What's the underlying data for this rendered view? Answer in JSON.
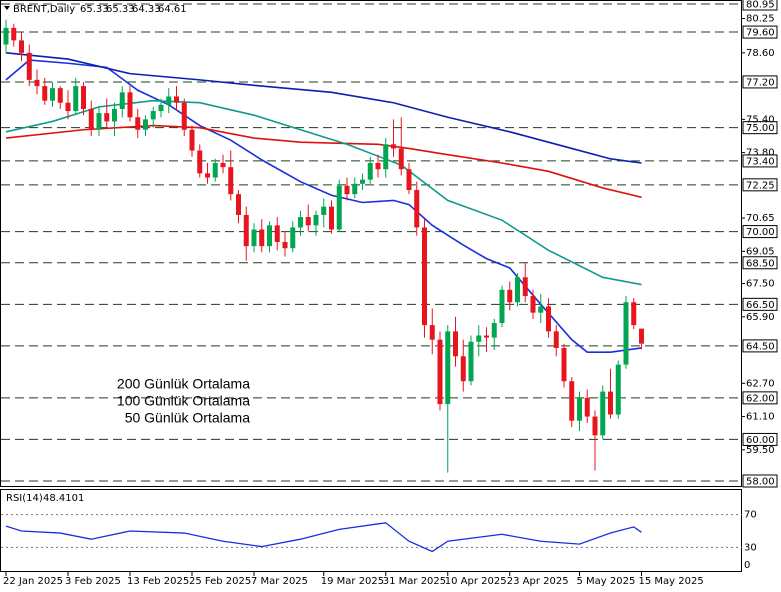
{
  "chart_data": [
    {
      "type": "candlestick",
      "title": "BRENT,Daily",
      "categories": [
        "22 Jan 2025",
        null,
        null,
        null,
        null,
        null,
        null,
        null,
        "3 Feb 2025",
        null,
        null,
        null,
        null,
        null,
        null,
        null,
        "13 Feb 2025",
        null,
        null,
        null,
        null,
        null,
        null,
        null,
        "25 Feb 2025",
        null,
        null,
        null,
        null,
        null,
        null,
        null,
        "7 Mar 2025",
        null,
        null,
        null,
        null,
        null,
        null,
        null,
        null,
        "19 Mar 2025",
        null,
        null,
        null,
        null,
        null,
        null,
        null,
        "31 Mar 2025",
        null,
        null,
        null,
        null,
        null,
        null,
        null,
        "10 Apr 2025",
        null,
        null,
        null,
        null,
        null,
        null,
        null,
        "23 Apr 2025",
        null,
        null,
        null,
        null,
        null,
        null,
        null,
        null,
        "5 May 2025",
        null,
        null,
        null,
        null,
        null,
        null,
        null,
        "15 May 2025"
      ],
      "ohlc": [
        [
          79.0,
          80.2,
          78.6,
          79.8
        ],
        [
          79.8,
          80.0,
          78.9,
          79.2
        ],
        [
          79.2,
          79.6,
          78.2,
          78.6
        ],
        [
          78.6,
          79.0,
          77.0,
          77.3
        ],
        [
          77.3,
          77.8,
          76.6,
          77.0
        ],
        [
          77.0,
          77.4,
          76.1,
          76.3
        ],
        [
          76.3,
          77.2,
          76.0,
          76.9
        ],
        [
          76.9,
          77.0,
          75.9,
          76.2
        ],
        [
          76.2,
          76.8,
          75.4,
          75.8
        ],
        [
          75.8,
          77.4,
          75.6,
          77.0
        ],
        [
          77.0,
          77.2,
          75.6,
          75.9
        ],
        [
          75.9,
          76.3,
          74.6,
          74.9
        ],
        [
          74.9,
          76.0,
          74.6,
          75.7
        ],
        [
          75.7,
          76.4,
          75.0,
          75.3
        ],
        [
          75.3,
          76.2,
          74.6,
          75.9
        ],
        [
          75.9,
          77.0,
          75.5,
          76.7
        ],
        [
          76.7,
          77.0,
          75.3,
          75.5
        ],
        [
          75.5,
          75.9,
          74.5,
          74.9
        ],
        [
          74.9,
          75.6,
          74.6,
          75.4
        ],
        [
          75.4,
          76.0,
          75.0,
          75.8
        ],
        [
          75.8,
          76.4,
          75.5,
          76.1
        ],
        [
          76.1,
          76.9,
          75.7,
          76.5
        ],
        [
          76.5,
          77.0,
          75.8,
          76.2
        ],
        [
          76.2,
          76.4,
          74.6,
          74.9
        ],
        [
          74.9,
          75.1,
          73.6,
          73.9
        ],
        [
          73.9,
          74.2,
          72.6,
          72.8
        ],
        [
          72.8,
          73.3,
          72.3,
          72.6
        ],
        [
          72.6,
          73.5,
          72.4,
          73.3
        ],
        [
          73.3,
          73.7,
          72.8,
          73.1
        ],
        [
          73.1,
          73.9,
          71.5,
          71.8
        ],
        [
          71.8,
          72.0,
          70.4,
          70.8
        ],
        [
          70.8,
          71.2,
          68.6,
          69.3
        ],
        [
          69.3,
          70.4,
          69.0,
          70.1
        ],
        [
          70.1,
          70.6,
          69.0,
          69.3
        ],
        [
          69.3,
          70.5,
          69.0,
          70.3
        ],
        [
          70.3,
          70.7,
          69.1,
          69.5
        ],
        [
          69.5,
          70.0,
          68.8,
          69.2
        ],
        [
          69.2,
          70.5,
          69.0,
          70.2
        ],
        [
          70.2,
          71.0,
          69.8,
          70.7
        ],
        [
          70.7,
          71.3,
          70.0,
          70.3
        ],
        [
          70.3,
          71.0,
          69.8,
          70.8
        ],
        [
          70.8,
          71.6,
          70.2,
          71.2
        ],
        [
          71.2,
          71.5,
          69.9,
          70.1
        ],
        [
          70.1,
          72.5,
          70.0,
          72.2
        ],
        [
          72.2,
          72.6,
          71.5,
          71.8
        ],
        [
          71.8,
          72.6,
          71.6,
          72.3
        ],
        [
          72.3,
          72.8,
          72.0,
          72.5
        ],
        [
          72.5,
          73.6,
          72.3,
          73.3
        ],
        [
          73.3,
          73.7,
          72.6,
          73.0
        ],
        [
          73.0,
          74.5,
          72.6,
          74.2
        ],
        [
          74.2,
          75.4,
          73.6,
          74.0
        ],
        [
          74.0,
          75.5,
          72.7,
          73.0
        ],
        [
          73.0,
          73.3,
          71.8,
          72.0
        ],
        [
          72.0,
          72.4,
          69.8,
          70.2
        ],
        [
          70.2,
          70.6,
          64.9,
          65.5
        ],
        [
          65.5,
          66.3,
          64.1,
          64.8
        ],
        [
          64.8,
          65.2,
          61.4,
          61.7
        ],
        [
          61.7,
          65.5,
          58.4,
          65.2
        ],
        [
          65.2,
          65.9,
          63.5,
          64.0
        ],
        [
          64.0,
          64.8,
          62.3,
          62.8
        ],
        [
          62.8,
          65.0,
          62.6,
          64.7
        ],
        [
          64.7,
          65.5,
          64.0,
          65.0
        ],
        [
          65.0,
          65.4,
          64.2,
          64.9
        ],
        [
          64.9,
          65.8,
          64.3,
          65.6
        ],
        [
          65.6,
          67.4,
          65.4,
          67.2
        ],
        [
          67.2,
          67.6,
          66.2,
          66.6
        ],
        [
          66.6,
          68.0,
          66.4,
          67.8
        ],
        [
          67.8,
          68.5,
          66.6,
          66.9
        ],
        [
          66.9,
          67.2,
          65.8,
          66.1
        ],
        [
          66.1,
          67.0,
          65.6,
          66.4
        ],
        [
          66.4,
          66.8,
          64.9,
          65.2
        ],
        [
          65.2,
          65.5,
          64.0,
          64.4
        ],
        [
          64.4,
          64.6,
          62.5,
          62.8
        ],
        [
          62.8,
          63.0,
          60.6,
          60.9
        ],
        [
          60.9,
          62.3,
          60.4,
          62.0
        ],
        [
          62.0,
          62.4,
          60.8,
          61.1
        ],
        [
          61.1,
          61.4,
          58.5,
          60.2
        ],
        [
          60.2,
          62.6,
          60.0,
          62.3
        ],
        [
          62.3,
          63.4,
          61.0,
          61.2
        ],
        [
          61.2,
          63.8,
          61.0,
          63.6
        ],
        [
          63.6,
          66.9,
          63.4,
          66.6
        ],
        [
          66.6,
          66.8,
          65.3,
          65.5
        ],
        [
          65.33,
          65.33,
          64.33,
          64.61
        ]
      ],
      "up_color": "#00a651",
      "down_color": "#e8141e",
      "series": [
        {
          "color": "#1a2ee0",
          "x": [
            0,
            3,
            8,
            13,
            17,
            21,
            25,
            29,
            33,
            38,
            42,
            46,
            50,
            52,
            55,
            59,
            62,
            65,
            69,
            73,
            75,
            78,
            82
          ],
          "values": [
            77.3,
            78.25,
            78.1,
            77.9,
            76.8,
            76.1,
            75.1,
            74.4,
            73.45,
            72.4,
            71.75,
            71.4,
            71.5,
            71.3,
            70.3,
            69.35,
            68.7,
            68.25,
            66.5,
            64.8,
            64.2,
            64.2,
            64.4
          ]
        },
        {
          "name": "200 Günlük Ortalama",
          "color": "#0b1fb0",
          "x": [
            0,
            8,
            16,
            25,
            33,
            42,
            50,
            57,
            65,
            73,
            78,
            82
          ],
          "values": [
            78.6,
            78.3,
            77.6,
            77.3,
            77.0,
            76.7,
            76.2,
            75.5,
            74.8,
            74.0,
            73.5,
            73.3
          ]
        },
        {
          "name": "100 Günlük Ortalama",
          "color": "#e01010",
          "x": [
            0,
            10,
            19,
            25,
            32,
            38,
            48,
            52,
            57,
            64,
            70,
            77,
            82
          ],
          "values": [
            74.5,
            74.9,
            75.1,
            75.0,
            74.5,
            74.3,
            74.2,
            74.0,
            73.7,
            73.3,
            72.9,
            72.1,
            71.65
          ]
        },
        {
          "name": "50 Günlük Ortalama",
          "color": "#129a8c",
          "x": [
            0,
            6,
            12,
            19,
            25,
            32,
            38,
            44,
            51,
            57,
            64,
            70,
            77,
            82
          ],
          "values": [
            74.8,
            75.3,
            76.0,
            76.3,
            76.2,
            75.6,
            74.9,
            74.2,
            73.2,
            71.5,
            70.55,
            69.1,
            67.8,
            67.45
          ]
        }
      ],
      "ylim": [
        58,
        80.95
      ],
      "yticks": [
        80.25,
        {
          "value": 78.6,
          "label": "78.60"
        },
        {
          "value": 75.4,
          "label": "75.40"
        },
        {
          "value": 73.8,
          "label": "73.80"
        },
        70.65,
        69.05,
        {
          "value": 67.5,
          "label": "67.50"
        },
        {
          "value": 65.9,
          "label": "65.90"
        },
        {
          "value": 62.7,
          "label": "62.70"
        },
        {
          "value": 61.1,
          "label": "61.10"
        },
        {
          "value": 59.5,
          "label": "59.50"
        }
      ],
      "levels": [
        80.95,
        {
          "value": 79.6,
          "label": "79.60"
        },
        {
          "value": 77.2,
          "label": "77.20"
        },
        {
          "value": 75.0,
          "label": "75.00"
        },
        {
          "value": 73.4,
          "label": "73.40"
        },
        72.25,
        {
          "value": 70.0,
          "label": "70.00"
        },
        {
          "value": 68.5,
          "label": "68.50"
        },
        {
          "value": 66.5,
          "label": "66.50"
        },
        {
          "value": 64.5,
          "label": "64.50"
        },
        {
          "value": 62.0,
          "label": "62.00"
        },
        {
          "value": 60.0,
          "label": "60.00"
        },
        {
          "value": 58.0,
          "label": "58.00"
        }
      ]
    },
    {
      "type": "line",
      "title": "RSI(14)",
      "color": "#1a2ee0",
      "x": [
        0,
        2,
        7,
        11,
        16,
        23,
        28,
        33,
        38,
        43,
        49,
        52,
        55,
        57,
        64,
        69,
        74,
        78,
        81,
        82
      ],
      "values": [
        56,
        50,
        47.5,
        40,
        50,
        47.5,
        37.5,
        31,
        40,
        52,
        60,
        37.5,
        25,
        37.5,
        46,
        37.5,
        34,
        47.5,
        55,
        48.4101
      ],
      "ylim": [
        0,
        100
      ],
      "yticks": [
        70,
        30,
        0
      ]
    }
  ]
}
